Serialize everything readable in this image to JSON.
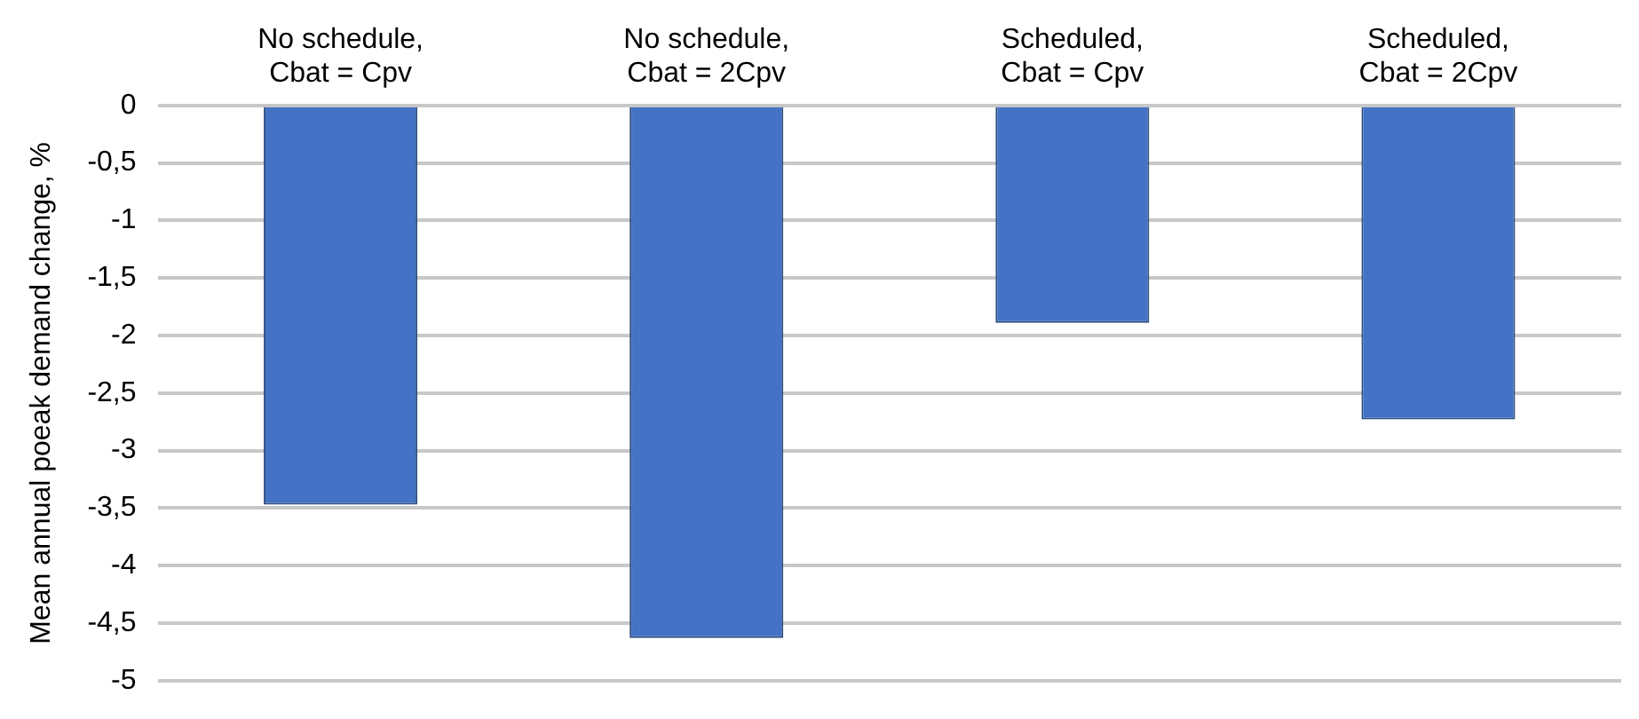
{
  "chart_data": {
    "type": "bar",
    "ylabel": "Mean annual poeak demand change, %",
    "categories": [
      "No schedule,\nCbat = Cpv",
      "No schedule,\nCbat = 2Cpv",
      "Scheduled,\nCbat = Cpv",
      "Scheduled,\nCbat = 2Cpv"
    ],
    "values": [
      -3.47,
      -4.63,
      -1.89,
      -2.73
    ],
    "color": "#4472c4",
    "ylim": [
      -5,
      0
    ],
    "yticks": [
      {
        "value": -5,
        "label": "-5"
      },
      {
        "value": -4.5,
        "label": "-4,5"
      },
      {
        "value": -4,
        "label": "-4"
      },
      {
        "value": -3.5,
        "label": "-3,5"
      },
      {
        "value": -3,
        "label": "-3"
      },
      {
        "value": -2.5,
        "label": "-2,5"
      },
      {
        "value": -2,
        "label": "-2"
      },
      {
        "value": -1.5,
        "label": "-1,5"
      },
      {
        "value": -1,
        "label": "-1"
      },
      {
        "value": -0.5,
        "label": "-0,5"
      },
      {
        "value": 0,
        "label": "0"
      }
    ],
    "grid": "y",
    "legend": false
  }
}
